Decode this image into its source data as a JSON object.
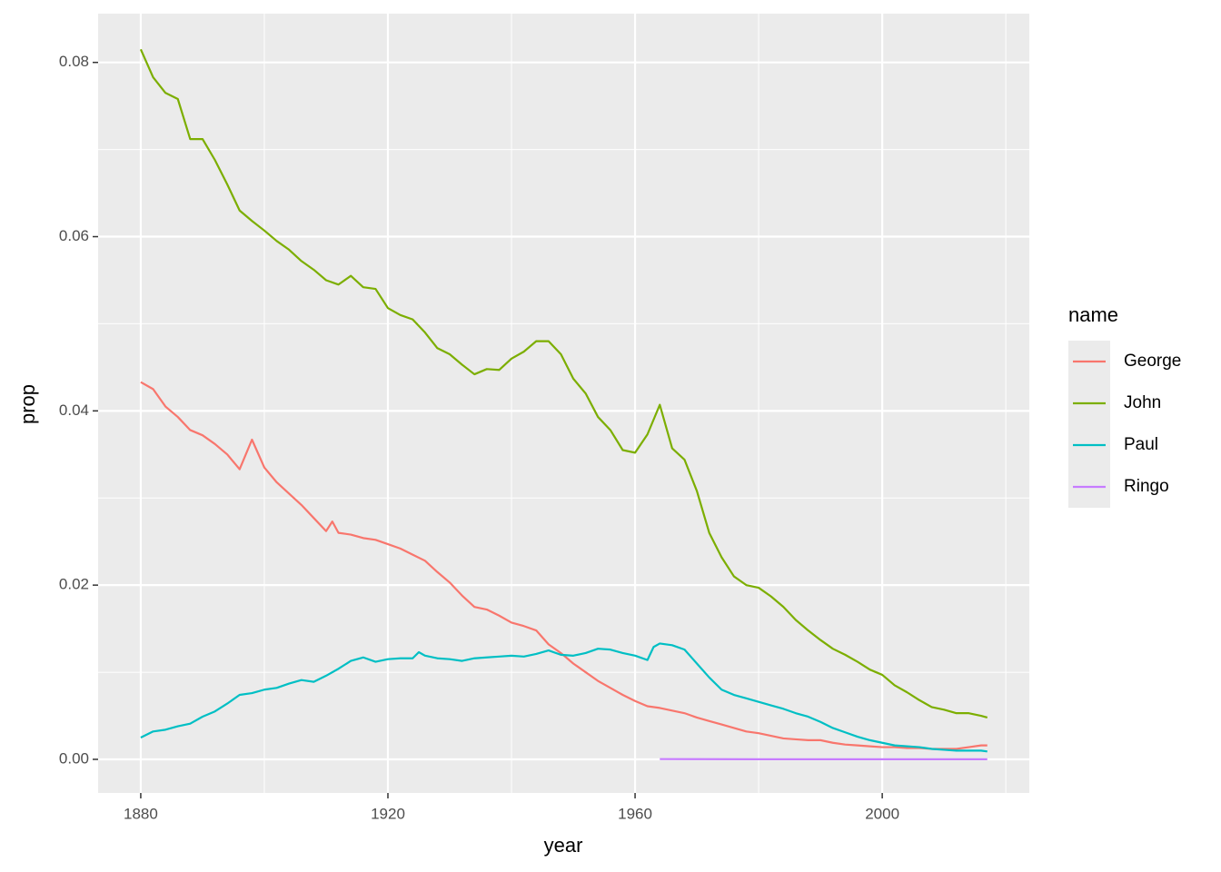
{
  "chart_data": {
    "type": "line",
    "x_label": "year",
    "y_label": "prop",
    "legend_title": "name",
    "legend": "right",
    "grid": true,
    "xlim": [
      1873.1,
      2023.8
    ],
    "ylim": [
      -0.00386,
      0.0856
    ],
    "xticks": [
      1880,
      1920,
      1960,
      2000
    ],
    "yticks": [
      {
        "value": 0,
        "label": "0.00"
      },
      0.02,
      0.04,
      0.06,
      0.08
    ],
    "xminor": [
      1900,
      1940,
      1980,
      2020
    ],
    "yminor": [
      0.01,
      0.03,
      0.05,
      0.07
    ],
    "series": [
      {
        "name": "George",
        "color": "#F8766D",
        "x": [
          1880,
          1882,
          1884,
          1886,
          1888,
          1890,
          1892,
          1894,
          1896,
          1898,
          1900,
          1902,
          1904,
          1906,
          1908,
          1910,
          1911,
          1912,
          1914,
          1916,
          1918,
          1920,
          1922,
          1924,
          1926,
          1928,
          1930,
          1932,
          1934,
          1936,
          1938,
          1940,
          1942,
          1944,
          1946,
          1948,
          1950,
          1952,
          1954,
          1956,
          1958,
          1960,
          1962,
          1964,
          1966,
          1968,
          1970,
          1972,
          1974,
          1976,
          1978,
          1980,
          1982,
          1984,
          1986,
          1988,
          1990,
          1992,
          1994,
          1996,
          1998,
          2000,
          2002,
          2004,
          2006,
          2008,
          2010,
          2012,
          2014,
          2016,
          2017
        ],
        "values": [
          0.0433,
          0.0425,
          0.0405,
          0.0393,
          0.0378,
          0.0372,
          0.0362,
          0.035,
          0.0333,
          0.0367,
          0.0335,
          0.0318,
          0.0305,
          0.0292,
          0.0277,
          0.0262,
          0.0273,
          0.026,
          0.0258,
          0.0254,
          0.0252,
          0.0247,
          0.0242,
          0.0235,
          0.0228,
          0.0215,
          0.0203,
          0.0188,
          0.0175,
          0.0172,
          0.0165,
          0.0157,
          0.0153,
          0.0148,
          0.0132,
          0.0122,
          0.011,
          0.01,
          0.009,
          0.0082,
          0.0074,
          0.0067,
          0.0061,
          0.0059,
          0.0056,
          0.0053,
          0.0048,
          0.0044,
          0.004,
          0.0036,
          0.0032,
          0.003,
          0.0027,
          0.0024,
          0.0023,
          0.0022,
          0.0022,
          0.0019,
          0.0017,
          0.0016,
          0.0015,
          0.0014,
          0.0014,
          0.0013,
          0.0013,
          0.0012,
          0.0012,
          0.0012,
          0.0014,
          0.0016,
          0.0016
        ]
      },
      {
        "name": "John",
        "color": "#7CAE00",
        "x": [
          1880,
          1882,
          1884,
          1886,
          1888,
          1890,
          1892,
          1894,
          1896,
          1898,
          1900,
          1902,
          1904,
          1906,
          1908,
          1910,
          1912,
          1914,
          1916,
          1918,
          1920,
          1922,
          1924,
          1926,
          1928,
          1930,
          1932,
          1934,
          1936,
          1938,
          1940,
          1942,
          1944,
          1946,
          1948,
          1950,
          1952,
          1954,
          1956,
          1958,
          1960,
          1962,
          1964,
          1966,
          1968,
          1970,
          1972,
          1974,
          1976,
          1978,
          1980,
          1982,
          1984,
          1986,
          1988,
          1990,
          1992,
          1994,
          1996,
          1998,
          2000,
          2002,
          2004,
          2006,
          2008,
          2010,
          2012,
          2014,
          2016,
          2017
        ],
        "values": [
          0.0815,
          0.0783,
          0.0765,
          0.0758,
          0.0712,
          0.0712,
          0.0688,
          0.066,
          0.063,
          0.0618,
          0.0607,
          0.0595,
          0.0585,
          0.0572,
          0.0562,
          0.055,
          0.0545,
          0.0555,
          0.0542,
          0.054,
          0.0518,
          0.051,
          0.0505,
          0.049,
          0.0472,
          0.0465,
          0.0453,
          0.0442,
          0.0448,
          0.0447,
          0.046,
          0.0468,
          0.048,
          0.048,
          0.0465,
          0.0437,
          0.042,
          0.0393,
          0.0378,
          0.0355,
          0.0352,
          0.0373,
          0.0407,
          0.0357,
          0.0344,
          0.0308,
          0.026,
          0.0232,
          0.021,
          0.02,
          0.0197,
          0.0187,
          0.0175,
          0.016,
          0.0148,
          0.0137,
          0.0127,
          0.012,
          0.0112,
          0.0103,
          0.0097,
          0.0085,
          0.0077,
          0.0068,
          0.006,
          0.0057,
          0.0053,
          0.0053,
          0.005,
          0.0048
        ]
      },
      {
        "name": "Paul",
        "color": "#00BFC4",
        "x": [
          1880,
          1882,
          1884,
          1886,
          1888,
          1890,
          1892,
          1894,
          1896,
          1898,
          1900,
          1902,
          1904,
          1906,
          1908,
          1910,
          1912,
          1914,
          1916,
          1918,
          1920,
          1922,
          1924,
          1925,
          1926,
          1928,
          1930,
          1932,
          1934,
          1936,
          1938,
          1940,
          1942,
          1944,
          1946,
          1948,
          1950,
          1952,
          1954,
          1956,
          1958,
          1960,
          1962,
          1963,
          1964,
          1966,
          1968,
          1970,
          1972,
          1974,
          1976,
          1978,
          1980,
          1982,
          1984,
          1986,
          1988,
          1990,
          1992,
          1994,
          1996,
          1998,
          2000,
          2002,
          2004,
          2006,
          2008,
          2010,
          2012,
          2014,
          2016,
          2017
        ],
        "values": [
          0.0025,
          0.0032,
          0.0034,
          0.0038,
          0.0041,
          0.0049,
          0.0055,
          0.0064,
          0.0074,
          0.0076,
          0.008,
          0.0082,
          0.0087,
          0.0091,
          0.0089,
          0.0096,
          0.0104,
          0.0113,
          0.0117,
          0.0112,
          0.0115,
          0.0116,
          0.0116,
          0.0123,
          0.0119,
          0.0116,
          0.0115,
          0.0113,
          0.0116,
          0.0117,
          0.0118,
          0.0119,
          0.0118,
          0.0121,
          0.0125,
          0.012,
          0.0119,
          0.0122,
          0.0127,
          0.0126,
          0.0122,
          0.0119,
          0.0114,
          0.0129,
          0.0133,
          0.0131,
          0.0126,
          0.011,
          0.0094,
          0.008,
          0.0074,
          0.007,
          0.0066,
          0.0062,
          0.0058,
          0.0053,
          0.0049,
          0.0043,
          0.0036,
          0.0031,
          0.0026,
          0.0022,
          0.0019,
          0.0016,
          0.0015,
          0.0014,
          0.0012,
          0.0011,
          0.001,
          0.001,
          0.001,
          0.0009
        ]
      },
      {
        "name": "Ringo",
        "color": "#C77CFF",
        "x": [
          1964,
          1970,
          1980,
          1990,
          2000,
          2010,
          2017
        ],
        "values": [
          3e-05,
          2e-05,
          1e-05,
          1e-05,
          1e-05,
          1e-05,
          1e-05
        ]
      }
    ]
  }
}
